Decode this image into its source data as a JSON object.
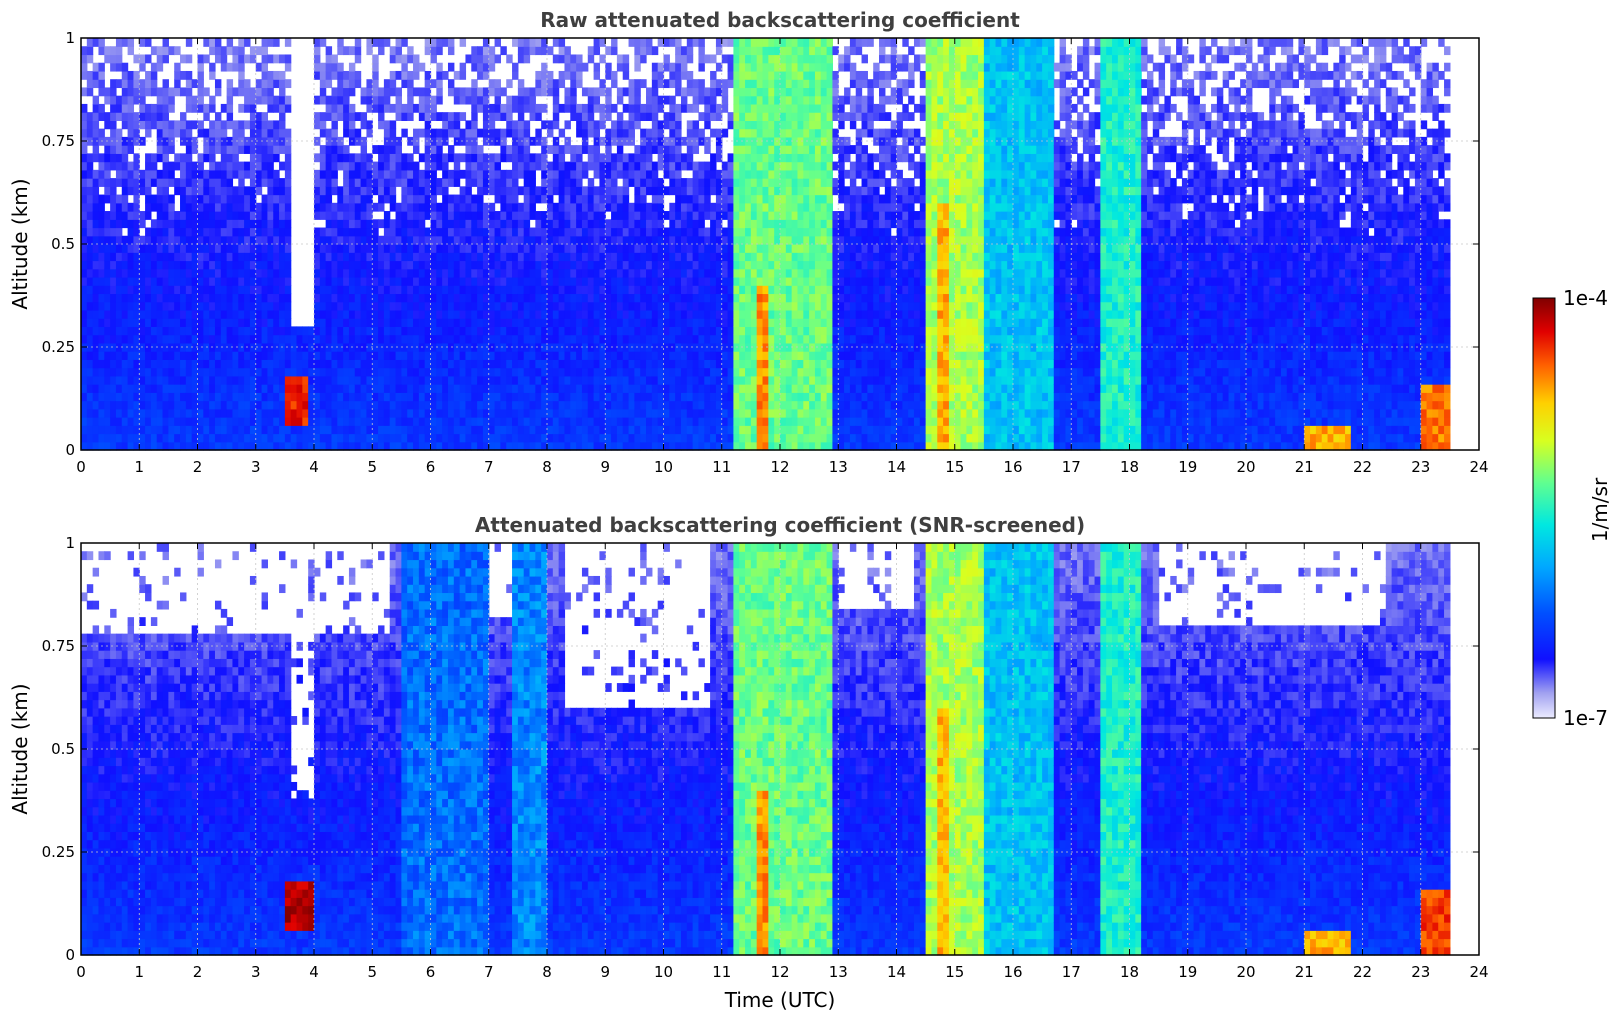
{
  "chart_data": [
    {
      "type": "heatmap",
      "title": "Raw attenuated backscattering coefficient",
      "xlabel": "",
      "ylabel": "Altitude (km)",
      "xlim": [
        0,
        24
      ],
      "ylim": [
        0,
        1
      ],
      "xticks": [
        "0",
        "1",
        "2",
        "3",
        "4",
        "5",
        "6",
        "7",
        "8",
        "9",
        "10",
        "11",
        "12",
        "13",
        "14",
        "15",
        "16",
        "17",
        "18",
        "19",
        "20",
        "21",
        "22",
        "23",
        "24"
      ],
      "yticks": [
        "0",
        "0.25",
        "0.5",
        "0.75",
        "1"
      ],
      "grid": true,
      "data_end_time": 23.5,
      "features": [
        {
          "t_start": 3.5,
          "t_end": 3.9,
          "alt_low": 0.07,
          "alt_high": 0.17,
          "level": 0.88
        },
        {
          "t_start": 11.2,
          "t_end": 12.9,
          "alt_low": 0,
          "alt_high": 1,
          "level": 0.55
        },
        {
          "t_start": 11.6,
          "t_end": 11.8,
          "alt_low": 0,
          "alt_high": 0.4,
          "level": 0.78
        },
        {
          "t_start": 14.5,
          "t_end": 15.5,
          "alt_low": 0,
          "alt_high": 1,
          "level": 0.6
        },
        {
          "t_start": 14.7,
          "t_end": 14.9,
          "alt_low": 0,
          "alt_high": 0.6,
          "level": 0.75
        },
        {
          "t_start": 15.5,
          "t_end": 16.7,
          "alt_low": 0,
          "alt_high": 1,
          "level": 0.4
        },
        {
          "t_start": 17.5,
          "t_end": 18.2,
          "alt_low": 0,
          "alt_high": 1,
          "level": 0.48
        },
        {
          "t_start": 21.05,
          "t_end": 21.8,
          "alt_low": 0,
          "alt_high": 0.06,
          "level": 0.75
        },
        {
          "t_start": 23.0,
          "t_end": 23.5,
          "alt_low": 0,
          "alt_high": 0.15,
          "level": 0.8
        }
      ],
      "no_signal_regions": [
        {
          "t_start": 3.6,
          "t_end": 3.95,
          "alt_low": 0.3,
          "alt_high": 1
        }
      ]
    },
    {
      "type": "heatmap",
      "title": "Attenuated backscattering coefficient (SNR-screened)",
      "xlabel": "Time (UTC)",
      "ylabel": "Altitude (km)",
      "xlim": [
        0,
        24
      ],
      "ylim": [
        0,
        1
      ],
      "xticks": [
        "0",
        "1",
        "2",
        "3",
        "4",
        "5",
        "6",
        "7",
        "8",
        "9",
        "10",
        "11",
        "12",
        "13",
        "14",
        "15",
        "16",
        "17",
        "18",
        "19",
        "20",
        "21",
        "22",
        "23",
        "24"
      ],
      "yticks": [
        "0",
        "0.25",
        "0.5",
        "0.75",
        "1"
      ],
      "grid": true,
      "data_end_time": 23.5,
      "features": [
        {
          "t_start": 3.5,
          "t_end": 3.95,
          "alt_low": 0.07,
          "alt_high": 0.17,
          "level": 0.95
        },
        {
          "t_start": 11.2,
          "t_end": 12.9,
          "alt_low": 0,
          "alt_high": 1,
          "level": 0.55
        },
        {
          "t_start": 11.6,
          "t_end": 11.8,
          "alt_low": 0,
          "alt_high": 0.4,
          "level": 0.78
        },
        {
          "t_start": 14.5,
          "t_end": 15.5,
          "alt_low": 0,
          "alt_high": 1,
          "level": 0.6
        },
        {
          "t_start": 14.7,
          "t_end": 14.9,
          "alt_low": 0,
          "alt_high": 0.6,
          "level": 0.75
        },
        {
          "t_start": 15.5,
          "t_end": 16.7,
          "alt_low": 0,
          "alt_high": 1,
          "level": 0.4
        },
        {
          "t_start": 17.5,
          "t_end": 18.2,
          "alt_low": 0,
          "alt_high": 1,
          "level": 0.48
        },
        {
          "t_start": 5.5,
          "t_end": 7.0,
          "alt_low": 0,
          "alt_high": 1,
          "level": 0.3
        },
        {
          "t_start": 7.4,
          "t_end": 8.0,
          "alt_low": 0,
          "alt_high": 1,
          "level": 0.33
        },
        {
          "t_start": 21.05,
          "t_end": 21.8,
          "alt_low": 0,
          "alt_high": 0.06,
          "level": 0.75
        },
        {
          "t_start": 23.0,
          "t_end": 23.5,
          "alt_low": 0,
          "alt_high": 0.15,
          "level": 0.85
        }
      ],
      "screened_regions": [
        {
          "t_start": 0,
          "t_end": 5.3,
          "alt_low": 0.78,
          "alt_high": 1
        },
        {
          "t_start": 3.6,
          "t_end": 3.95,
          "alt_low": 0.38,
          "alt_high": 1
        },
        {
          "t_start": 8.3,
          "t_end": 10.8,
          "alt_low": 0.6,
          "alt_high": 1
        },
        {
          "t_start": 7.0,
          "t_end": 7.4,
          "alt_low": 0.82,
          "alt_high": 1
        },
        {
          "t_start": 13.0,
          "t_end": 14.3,
          "alt_low": 0.85,
          "alt_high": 1
        },
        {
          "t_start": 18.5,
          "t_end": 22.4,
          "alt_low": 0.8,
          "alt_high": 1
        },
        {
          "t_start": 23.5,
          "t_end": 24,
          "alt_low": 0,
          "alt_high": 1
        }
      ]
    }
  ],
  "colorbar": {
    "label": "1/m/sr",
    "max_label": "1e-4",
    "min_label": "1e-7",
    "colormap": [
      "#ececff",
      "#a0a0f0",
      "#1010ff",
      "#0050ff",
      "#00a8ff",
      "#00e8e0",
      "#60ff90",
      "#d8ff20",
      "#ffd000",
      "#ff6000",
      "#e00000",
      "#800000"
    ]
  }
}
